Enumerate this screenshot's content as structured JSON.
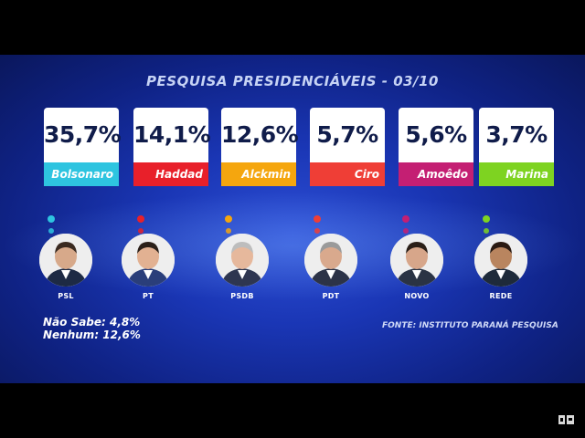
{
  "title": "PESQUISA PRESIDENCIÁVEIS - 03/10",
  "source": "FONTE: INSTITUTO PARANÁ PESQUISA",
  "notes": [
    "Não Sabe: 4,8%",
    "Nenhum: 12,6%"
  ],
  "chart_data": {
    "type": "bar",
    "title": "PESQUISA PRESIDENCIÁVEIS - 03/10",
    "categories": [
      "Bolsonaro",
      "Haddad",
      "Alckmin",
      "Ciro",
      "Amoêdo",
      "Marina"
    ],
    "values": [
      35.7,
      14.1,
      12.6,
      5.7,
      5.6,
      3.7
    ],
    "value_labels": [
      "35,7%",
      "14,1%",
      "12,6%",
      "5,7%",
      "5,6%",
      "3,7%"
    ],
    "parties": [
      "PSL",
      "PT",
      "PSDB",
      "PDT",
      "NOVO",
      "REDE"
    ],
    "colors": [
      "#2ec4e0",
      "#e8202a",
      "#f5a60e",
      "#ef3e36",
      "#c41f73",
      "#7ed321"
    ],
    "grid": false,
    "legend": "none"
  }
}
